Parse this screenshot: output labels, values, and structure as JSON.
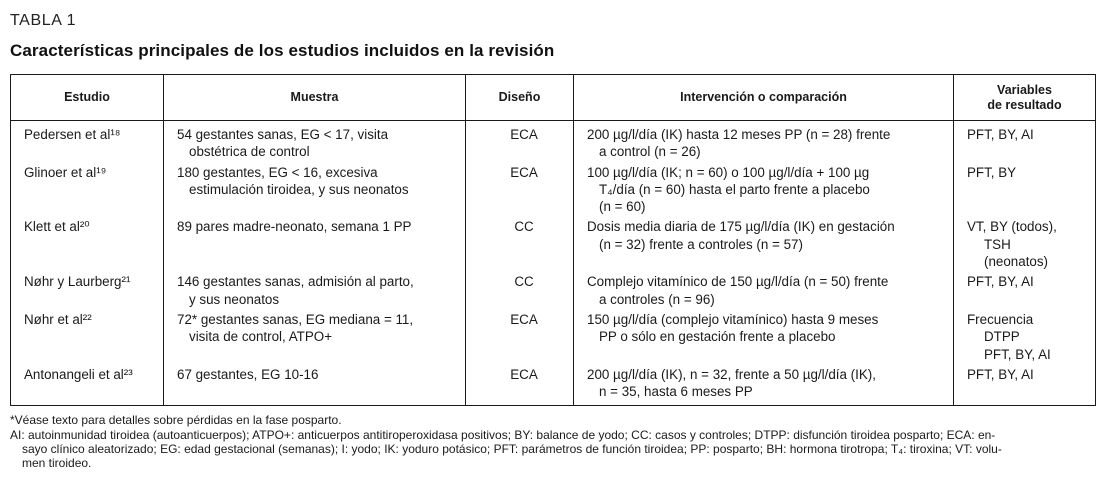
{
  "page": {
    "table_label": "TABLA 1",
    "title": "Características principales de los estudios incluidos en la revisión"
  },
  "colors": {
    "text": "#1a1a1a",
    "border": "#1a1a1a",
    "background": "#ffffff"
  },
  "table": {
    "headers": [
      {
        "lines": [
          "Estudio"
        ]
      },
      {
        "lines": [
          "Muestra"
        ]
      },
      {
        "lines": [
          "Diseño"
        ]
      },
      {
        "lines": [
          "Intervención o comparación"
        ]
      },
      {
        "lines": [
          "Variables",
          "de resultado"
        ]
      }
    ],
    "rows": [
      {
        "estudio": "Pedersen et al¹⁸",
        "muestra": [
          "54 gestantes sanas, EG < 17, visita",
          "obstétrica de control"
        ],
        "diseno": "ECA",
        "intervencion": [
          "200 µg/l/día (IK) hasta 12 meses PP (n = 28) frente",
          "a control (n = 26)"
        ],
        "variables": [
          "PFT, BY, AI"
        ]
      },
      {
        "estudio": "Glinoer et al¹⁹",
        "muestra": [
          "180 gestantes, EG < 16, excesiva",
          "estimulación tiroidea, y sus neonatos"
        ],
        "diseno": "ECA",
        "intervencion": [
          "100 µg/l/día (IK; n = 60) o 100 µg/l/día + 100 µg",
          "T₄/día (n = 60) hasta el parto frente a placebo",
          "(n = 60)"
        ],
        "variables": [
          "PFT, BY"
        ]
      },
      {
        "estudio": "Klett et al²⁰",
        "muestra": [
          "89 pares madre-neonato, semana 1 PP"
        ],
        "diseno": "CC",
        "intervencion": [
          "Dosis media diaria de 175 µg/l/día (IK) en gestación",
          "(n = 32) frente a controles (n = 57)"
        ],
        "variables": [
          "VT, BY (todos),",
          "TSH",
          "(neonatos)"
        ]
      },
      {
        "estudio": "Nøhr y Laurberg²¹",
        "muestra": [
          "146 gestantes sanas, admisión al parto,",
          "y sus neonatos"
        ],
        "diseno": "CC",
        "intervencion": [
          "Complejo vitamínico de 150 µg/l/día (n = 50) frente",
          "a controles (n = 96)"
        ],
        "variables": [
          "PFT, BY, AI"
        ]
      },
      {
        "estudio": "Nøhr et al²²",
        "muestra": [
          "72* gestantes sanas, EG mediana = 11,",
          "visita de control, ATPO+"
        ],
        "diseno": "ECA",
        "intervencion": [
          "150 µg/l/día (complejo vitamínico) hasta 9 meses",
          "PP o sólo en gestación frente a placebo"
        ],
        "variables": [
          "Frecuencia",
          "DTPP",
          "PFT, BY, AI"
        ]
      },
      {
        "estudio": "Antonangeli et al²³",
        "muestra": [
          "67 gestantes, EG 10-16"
        ],
        "diseno": "ECA",
        "intervencion": [
          "200 µg/l/día (IK), n = 32, frente a 50 µg/l/día (IK),",
          "n = 35, hasta 6 meses PP"
        ],
        "variables": [
          "PFT, BY, AI"
        ]
      }
    ]
  },
  "footnotes": {
    "asterisk": "*Véase texto para detalles sobre pérdidas en la fase posparto.",
    "abbreviations_lines": [
      "AI: autoinmunidad tiroidea (autoanticuerpos); ATPO+: anticuerpos antitiroperoxidasa positivos; BY: balance de yodo; CC: casos y controles; DTPP: disfunción tiroidea posparto; ECA: en-",
      "sayo clínico aleatorizado; EG: edad gestacional (semanas); I: yodo; IK: yoduro potásico; PFT: parámetros de función tiroidea; PP: posparto; BH: hormona tirotropa; T₄: tiroxina; VT: volu-",
      "men tiroideo."
    ]
  }
}
